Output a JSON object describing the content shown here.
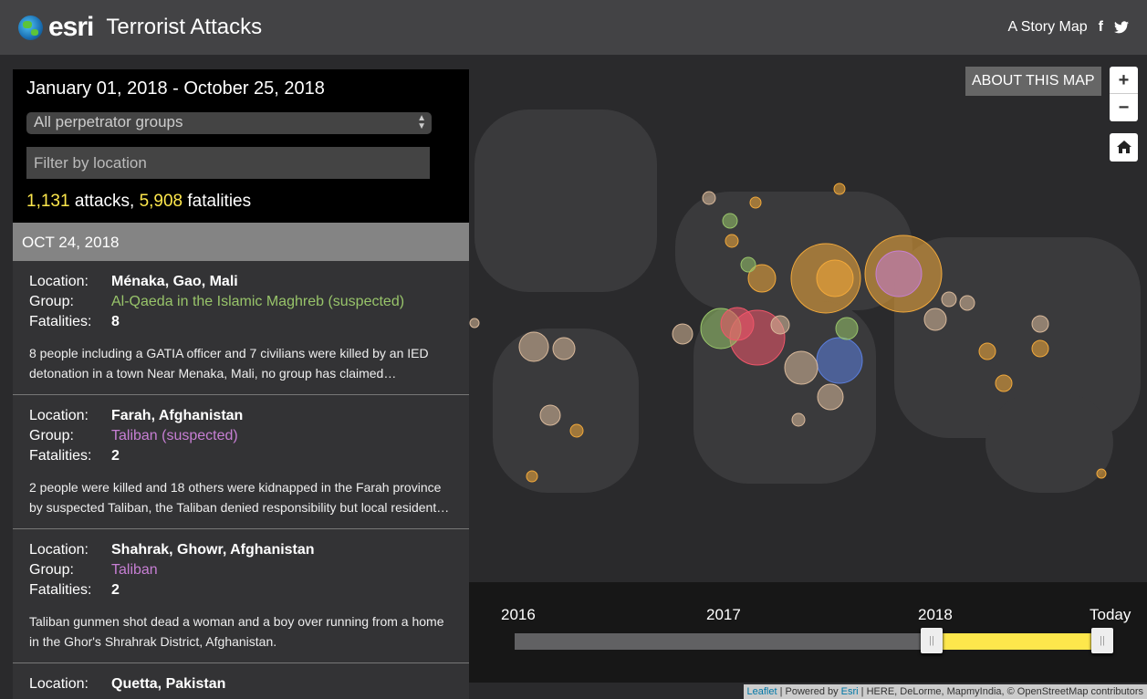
{
  "header": {
    "brand": "esri",
    "title": "Terrorist Attacks",
    "story_map": "A Story Map",
    "icons": [
      "facebook-icon",
      "twitter-icon"
    ]
  },
  "filters": {
    "date_range": "January 01, 2018 - October 25, 2018",
    "group_select": "All perpetrator groups",
    "location_placeholder": "Filter by location",
    "attacks": "1,131",
    "attacks_label": " attacks, ",
    "fatalities": "5,908",
    "fatalities_label": " fatalities"
  },
  "list": {
    "date_header": "OCT 24, 2018",
    "labels": {
      "location": "Location:",
      "group": "Group:",
      "fatalities": "Fatalities:"
    },
    "items": [
      {
        "location": "Ménaka, Gao, Mali",
        "group": "Al-Qaeda in the Islamic Maghreb (suspected)",
        "group_color": "#98c46a",
        "fatalities": "8",
        "description": "8 people including a GATIA officer and 7 civilians were killed by an IED detonation in a town Near Menaka, Mali, no group has claimed responsibility"
      },
      {
        "location": "Farah, Afghanistan",
        "group": "Taliban (suspected)",
        "group_color": "#c77fd4",
        "fatalities": "2",
        "description": "2 people were killed and 18 others were kidnapped in the Farah province by suspected Taliban, the Taliban denied responsibility but local residents say"
      },
      {
        "location": "Shahrak, Ghowr, Afghanistan",
        "group": "Taliban",
        "group_color": "#c77fd4",
        "fatalities": "2",
        "description": "Taliban gunmen shot dead a woman and a boy over running from a home in the Ghor's Shrahrak District, Afghanistan."
      },
      {
        "location": "Quetta, Pakistan"
      }
    ]
  },
  "map": {
    "about": "ABOUT THIS MAP",
    "zoom_in": "+",
    "zoom_out": "−",
    "home_icon": "home-icon",
    "colors": {
      "accent": "#fde74c"
    }
  },
  "timeline": {
    "labels": [
      "2016",
      "2017",
      "2018",
      "Today"
    ],
    "range_start": "2018",
    "range_end": "Today"
  },
  "attribution": {
    "leaflet": "Leaflet",
    "powered": " | Powered by ",
    "esri": "Esri",
    "rest": " | HERE, DeLorme, MapmyIndia, © OpenStreetMap contributors"
  }
}
